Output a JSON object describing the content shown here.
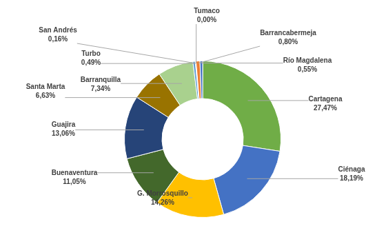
{
  "chart_data": {
    "type": "doughnut",
    "categories": [
      "Cartagena",
      "Ciénaga",
      "G. Morrosquillo",
      "Buenaventura",
      "Guajira",
      "Santa Marta",
      "Barranquilla",
      "Turbo",
      "San Andrés",
      "Tumaco",
      "Barrancabermeja",
      "Río Magdalena"
    ],
    "values": [
      27.47,
      18.19,
      14.26,
      11.05,
      13.06,
      6.63,
      7.34,
      0.49,
      0.16,
      0.0,
      0.8,
      0.55
    ],
    "value_labels": [
      "27,47%",
      "18,19%",
      "14,26%",
      "11,05%",
      "13,06%",
      "6,63%",
      "7,34%",
      "0,49%",
      "0,16%",
      "0,00%",
      "0,80%",
      "0,55%"
    ],
    "colors": [
      "#70ad47",
      "#4472c4",
      "#ffc000",
      "#43682b",
      "#264478",
      "#997300",
      "#a9d18e",
      "#5b9bd5",
      "#a5a5a5",
      "#ed7d31",
      "#ed7d31",
      "#4472c4"
    ],
    "data_labels": true
  }
}
